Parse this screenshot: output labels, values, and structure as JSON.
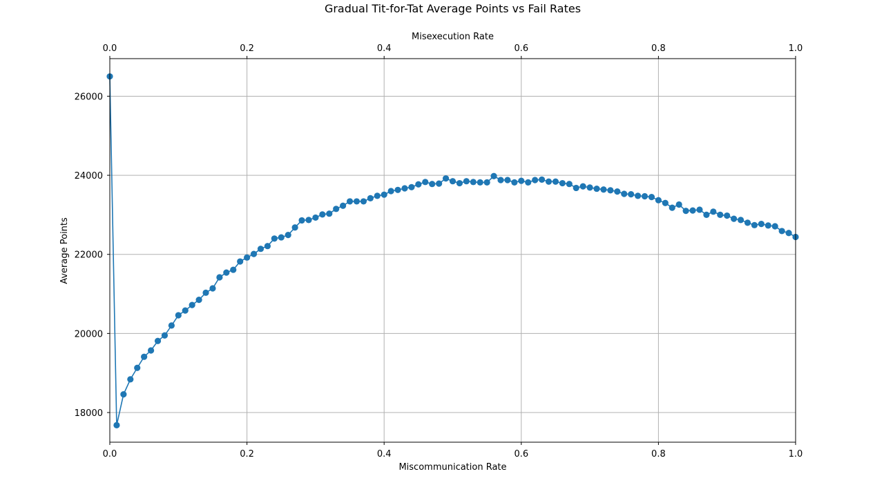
{
  "chart_data": {
    "type": "line",
    "title": "Gradual Tit-for-Tat Average Points vs Fail Rates",
    "xlabel": "Miscommunication Rate",
    "x2label": "Misexecution Rate",
    "ylabel": "Average Points",
    "xlim": [
      0.0,
      1.0
    ],
    "ylim": [
      17250,
      26950
    ],
    "x_ticks": [
      0.0,
      0.2,
      0.4,
      0.6,
      0.8,
      1.0
    ],
    "x_tick_labels": [
      "0.0",
      "0.2",
      "0.4",
      "0.6",
      "0.8",
      "1.0"
    ],
    "x2_ticks": [
      0.0,
      0.2,
      0.4,
      0.6,
      0.8,
      1.0
    ],
    "x2_tick_labels": [
      "0.0",
      "0.2",
      "0.4",
      "0.6",
      "0.8",
      "1.0"
    ],
    "y_ticks": [
      18000,
      20000,
      22000,
      24000,
      26000
    ],
    "y_tick_labels": [
      "18000",
      "20000",
      "22000",
      "24000",
      "26000"
    ],
    "grid": true,
    "line_color": "#1f77b4",
    "marker": "circle",
    "series": [
      {
        "x": [
          0.0,
          0.01,
          0.02,
          0.03,
          0.04,
          0.05,
          0.06,
          0.07,
          0.08,
          0.09,
          0.1,
          0.11,
          0.12,
          0.13,
          0.14,
          0.15,
          0.16,
          0.17,
          0.18,
          0.19,
          0.2,
          0.21,
          0.22,
          0.23,
          0.24,
          0.25,
          0.26,
          0.27,
          0.28,
          0.29,
          0.3,
          0.31,
          0.32,
          0.33,
          0.34,
          0.35,
          0.36,
          0.37,
          0.38,
          0.39,
          0.4,
          0.41,
          0.42,
          0.43,
          0.44,
          0.45,
          0.46,
          0.47,
          0.48,
          0.49,
          0.5,
          0.51,
          0.52,
          0.53,
          0.54,
          0.55,
          0.56,
          0.57,
          0.58,
          0.59,
          0.6,
          0.61,
          0.62,
          0.63,
          0.64,
          0.65,
          0.66,
          0.67,
          0.68,
          0.69,
          0.7,
          0.71,
          0.72,
          0.73,
          0.74,
          0.75,
          0.76,
          0.77,
          0.78,
          0.79,
          0.8,
          0.81,
          0.82,
          0.83,
          0.84,
          0.85,
          0.86,
          0.87,
          0.88,
          0.89,
          0.9,
          0.91,
          0.92,
          0.93,
          0.94,
          0.95,
          0.96,
          0.97,
          0.98,
          0.99,
          1.0
        ],
        "y": [
          26500,
          17680,
          18460,
          18840,
          19130,
          19410,
          19570,
          19810,
          19950,
          20200,
          20460,
          20580,
          20720,
          20850,
          21030,
          21140,
          21420,
          21540,
          21610,
          21820,
          21920,
          22010,
          22140,
          22210,
          22400,
          22430,
          22490,
          22680,
          22860,
          22870,
          22930,
          23010,
          23030,
          23150,
          23230,
          23340,
          23340,
          23340,
          23420,
          23480,
          23510,
          23600,
          23630,
          23670,
          23700,
          23770,
          23830,
          23780,
          23790,
          23920,
          23850,
          23800,
          23850,
          23830,
          23820,
          23820,
          23980,
          23880,
          23880,
          23820,
          23860,
          23820,
          23880,
          23890,
          23840,
          23840,
          23800,
          23780,
          23680,
          23720,
          23690,
          23660,
          23640,
          23620,
          23590,
          23530,
          23520,
          23480,
          23470,
          23450,
          23370,
          23300,
          23180,
          23260,
          23100,
          23110,
          23130,
          23000,
          23080,
          23000,
          22980,
          22900,
          22870,
          22800,
          22740,
          22770,
          22730,
          22710,
          22590,
          22540,
          22440
        ]
      }
    ]
  }
}
